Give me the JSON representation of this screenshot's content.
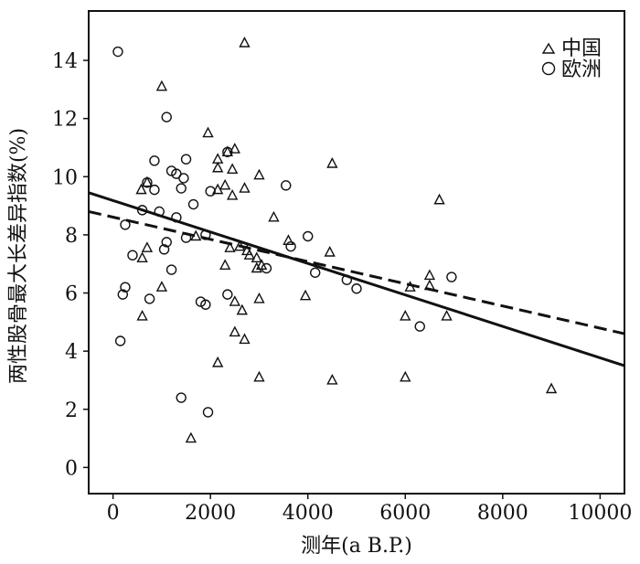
{
  "chart_data": {
    "type": "scatter",
    "title": "",
    "xlabel": "测年(a B.P.)",
    "ylabel": "两性股骨最大长差异指数(%)",
    "xlim": [
      -500,
      10500
    ],
    "ylim": [
      -0.9,
      15.7
    ],
    "x_ticks": [
      0,
      2000,
      4000,
      6000,
      8000,
      10000
    ],
    "y_ticks": [
      0,
      2,
      4,
      6,
      8,
      10,
      12,
      14
    ],
    "grid": false,
    "legend_position": "top-right",
    "series": [
      {
        "name": "中国",
        "marker": "triangle",
        "points": [
          [
            1000,
            13.1
          ],
          [
            2700,
            14.6
          ],
          [
            1950,
            11.5
          ],
          [
            2500,
            10.95
          ],
          [
            2350,
            10.85
          ],
          [
            2150,
            10.6
          ],
          [
            2150,
            10.3
          ],
          [
            2450,
            10.25
          ],
          [
            3000,
            10.05
          ],
          [
            4500,
            10.45
          ],
          [
            700,
            9.8
          ],
          [
            580,
            9.55
          ],
          [
            2150,
            9.55
          ],
          [
            2300,
            9.7
          ],
          [
            2700,
            9.6
          ],
          [
            2450,
            9.35
          ],
          [
            3300,
            8.6
          ],
          [
            6700,
            9.2
          ],
          [
            1700,
            7.95
          ],
          [
            700,
            7.55
          ],
          [
            600,
            7.2
          ],
          [
            2400,
            7.55
          ],
          [
            2600,
            7.6
          ],
          [
            2800,
            7.3
          ],
          [
            2750,
            7.45
          ],
          [
            2950,
            7.2
          ],
          [
            3050,
            6.95
          ],
          [
            3600,
            7.8
          ],
          [
            4450,
            7.4
          ],
          [
            2300,
            6.95
          ],
          [
            2950,
            6.85
          ],
          [
            1000,
            6.2
          ],
          [
            2500,
            5.7
          ],
          [
            2650,
            5.4
          ],
          [
            3000,
            5.8
          ],
          [
            3950,
            5.9
          ],
          [
            600,
            5.2
          ],
          [
            2500,
            4.65
          ],
          [
            2700,
            4.4
          ],
          [
            6100,
            6.2
          ],
          [
            6000,
            5.2
          ],
          [
            6500,
            6.6
          ],
          [
            6500,
            6.25
          ],
          [
            6850,
            5.2
          ],
          [
            2150,
            3.6
          ],
          [
            3000,
            3.1
          ],
          [
            4500,
            3.0
          ],
          [
            6000,
            3.1
          ],
          [
            9000,
            2.7
          ],
          [
            1600,
            1.0
          ]
        ]
      },
      {
        "name": "欧洲",
        "marker": "circle",
        "points": [
          [
            100,
            14.3
          ],
          [
            1100,
            12.05
          ],
          [
            850,
            10.55
          ],
          [
            1500,
            10.6
          ],
          [
            1200,
            10.2
          ],
          [
            1300,
            10.1
          ],
          [
            1450,
            9.95
          ],
          [
            2350,
            10.85
          ],
          [
            700,
            9.8
          ],
          [
            850,
            9.55
          ],
          [
            1400,
            9.6
          ],
          [
            2000,
            9.5
          ],
          [
            3550,
            9.7
          ],
          [
            600,
            8.85
          ],
          [
            950,
            8.8
          ],
          [
            1650,
            9.05
          ],
          [
            250,
            8.35
          ],
          [
            1100,
            7.75
          ],
          [
            1300,
            8.6
          ],
          [
            1500,
            7.9
          ],
          [
            1050,
            7.5
          ],
          [
            1900,
            8.0
          ],
          [
            4000,
            7.95
          ],
          [
            3650,
            7.6
          ],
          [
            400,
            7.3
          ],
          [
            750,
            5.8
          ],
          [
            1200,
            6.8
          ],
          [
            1800,
            5.7
          ],
          [
            1900,
            5.6
          ],
          [
            2350,
            5.95
          ],
          [
            3150,
            6.85
          ],
          [
            4150,
            6.7
          ],
          [
            4800,
            6.45
          ],
          [
            5000,
            6.15
          ],
          [
            6300,
            4.85
          ],
          [
            6950,
            6.55
          ],
          [
            200,
            5.95
          ],
          [
            250,
            6.2
          ],
          [
            150,
            4.35
          ],
          [
            1400,
            2.4
          ],
          [
            1950,
            1.9
          ]
        ]
      }
    ],
    "fit_lines": [
      {
        "series": "中国",
        "style": "solid",
        "x": [
          -500,
          10500
        ],
        "y": [
          9.45,
          3.5
        ]
      },
      {
        "series": "欧洲",
        "style": "dashed",
        "x": [
          -500,
          10500
        ],
        "y": [
          8.8,
          4.6
        ]
      }
    ]
  }
}
